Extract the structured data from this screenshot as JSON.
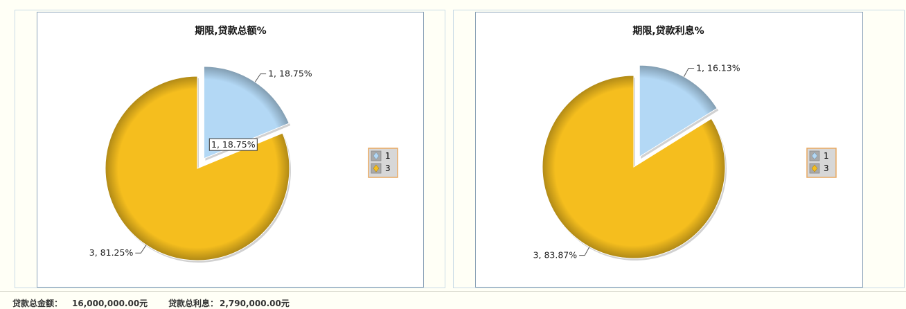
{
  "charts": [
    {
      "chart_data": {
        "type": "pie",
        "title": "期限,贷款总额%",
        "slices": [
          {
            "category": "1",
            "percent": 18.75,
            "label": "1, 18.75%",
            "color": "#b3d8f5",
            "exploded": true
          },
          {
            "category": "3",
            "percent": 81.25,
            "label": "3, 81.25%",
            "color": "#f5be1e",
            "exploded": false
          }
        ],
        "tooltip": "1, 18.75%",
        "legend": {
          "placement": "right",
          "entries": [
            "1",
            "3"
          ]
        }
      }
    },
    {
      "chart_data": {
        "type": "pie",
        "title": "期限,贷款利息%",
        "slices": [
          {
            "category": "1",
            "percent": 16.13,
            "label": "1, 16.13%",
            "color": "#b3d8f5",
            "exploded": true
          },
          {
            "category": "3",
            "percent": 83.87,
            "label": "3, 83.87%",
            "color": "#f5be1e",
            "exploded": false
          }
        ],
        "legend": {
          "placement": "right",
          "entries": [
            "1",
            "3"
          ]
        }
      }
    }
  ],
  "footer": {
    "total_amount_label": "贷款总金额：",
    "total_amount_value": "16,000,000.00元",
    "total_interest_label": "贷款总利息：",
    "total_interest_value": "2,790,000.00元"
  }
}
